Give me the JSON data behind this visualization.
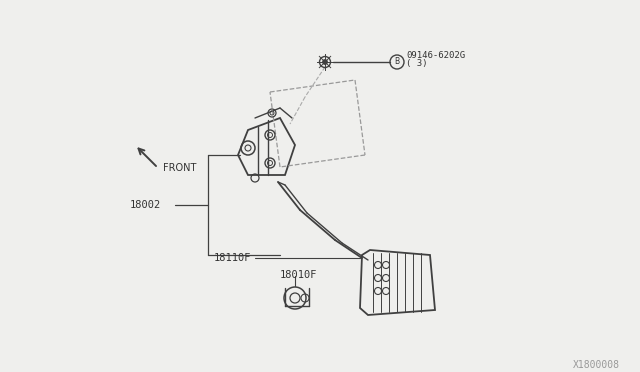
{
  "bg_color": "#efefed",
  "line_color": "#404040",
  "text_color": "#333333",
  "watermark": "X1800008",
  "front_label": "FRONT",
  "bolt_label_line1": "09146-6202G",
  "bolt_label_line2": "( 3)",
  "label_18002": "18002",
  "label_18110F": "18110F",
  "label_18010F": "18010F",
  "fig_width": 6.4,
  "fig_height": 3.72,
  "dpi": 100
}
